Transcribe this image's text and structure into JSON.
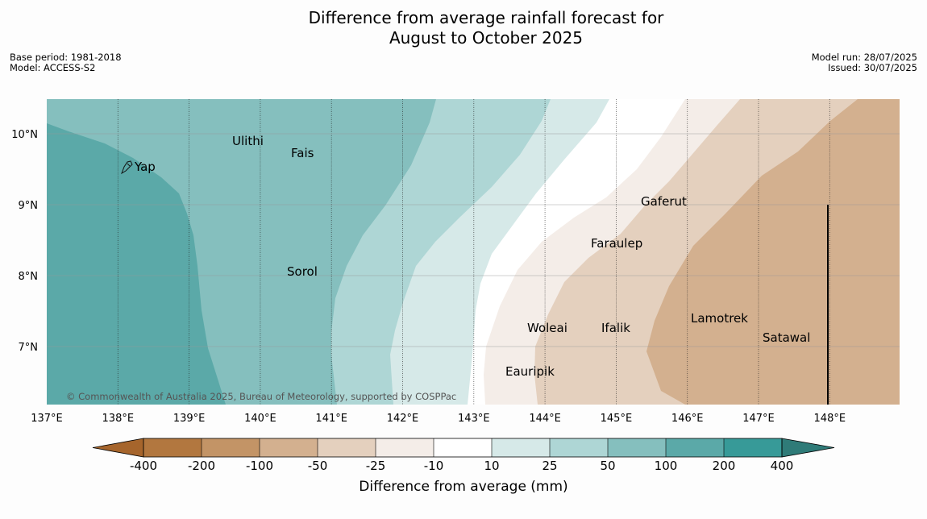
{
  "title": {
    "line1": "Difference from average rainfall forecast for",
    "line2": "August to October 2025"
  },
  "meta": {
    "base_period": "Base period: 1981-2018",
    "model": "Model: ACCESS-S2",
    "model_run": "Model run: 28/07/2025",
    "issued": "Issued: 30/07/2025"
  },
  "copyright": "© Commonwealth of Australia 2025, Bureau of Meteorology, supported by COSPPac",
  "axes": {
    "x_ticks": [
      "137°E",
      "138°E",
      "139°E",
      "140°E",
      "141°E",
      "142°E",
      "143°E",
      "144°E",
      "145°E",
      "146°E",
      "147°E",
      "148°E"
    ],
    "y_ticks": [
      "10°N",
      "9°N",
      "8°N",
      "7°N"
    ]
  },
  "islands": [
    {
      "name": "Ulithi"
    },
    {
      "name": "Fais"
    },
    {
      "name": "Yap"
    },
    {
      "name": "Gaferut"
    },
    {
      "name": "Faraulep"
    },
    {
      "name": "Sorol"
    },
    {
      "name": "Lamotrek"
    },
    {
      "name": "Woleai"
    },
    {
      "name": "Ifalik"
    },
    {
      "name": "Satawal"
    },
    {
      "name": "Eauripik"
    }
  ],
  "colorbar": {
    "title": "Difference from average (mm)",
    "tick_labels": [
      "-400",
      "-200",
      "-100",
      "-50",
      "-25",
      "-10",
      "10",
      "25",
      "50",
      "100",
      "200",
      "400"
    ],
    "colors": [
      "#a6652c",
      "#b2773f",
      "#c39466",
      "#d3b08f",
      "#e4d0be",
      "#f4ede8",
      "#ffffff",
      "#d6e9e8",
      "#aed6d5",
      "#85bfbe",
      "#5ba9a8",
      "#379a98",
      "#2f7b78"
    ]
  }
}
